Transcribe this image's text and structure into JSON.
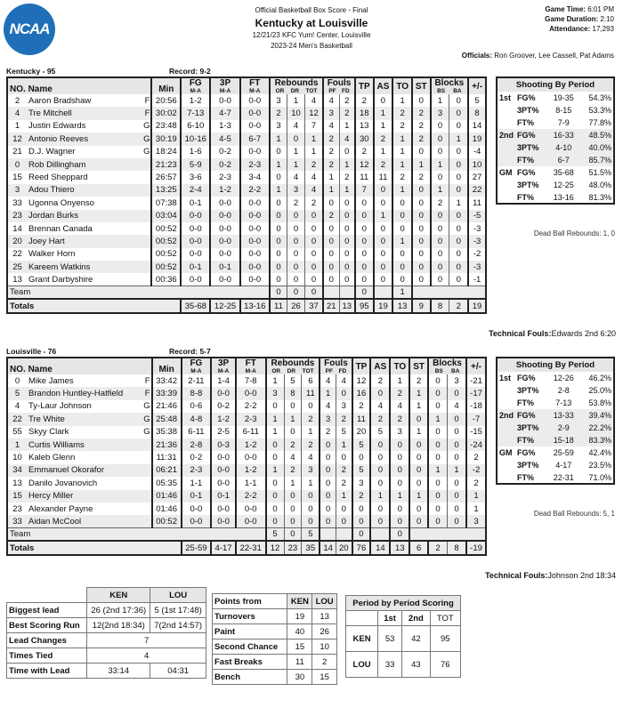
{
  "header": {
    "logo": "NCAA",
    "subtitle": "Official Basketball Box Score - Final",
    "title": "Kentucky at Louisville",
    "venue": "12/21/23 KFC Yum! Center, Louisville",
    "season": "2023-24 Men's Basketball"
  },
  "game_info": {
    "time_label": "Game Time:",
    "time": "6:01 PM",
    "duration_label": "Game Duration:",
    "duration": "2:10",
    "attendance_label": "Attendance:",
    "attendance": "17,293",
    "officials_label": "Officials:",
    "officials": "Ron Groover, Lee Cassell, Pat Adams"
  },
  "columns": {
    "no": "NO.",
    "name": "Name",
    "min": "Min",
    "fg": "FG",
    "p3": "3P",
    "ft": "FT",
    "ma": "M-A",
    "reb": "Rebounds",
    "or": "OR",
    "dr": "DR",
    "tot": "TOT",
    "fouls": "Fouls",
    "pf": "PF",
    "fd": "FD",
    "tp": "TP",
    "as": "AS",
    "to": "TO",
    "st": "ST",
    "blocks": "Blocks",
    "bs": "BS",
    "ba": "BA",
    "pm": "+/-",
    "team": "Team",
    "totals": "Totals"
  },
  "teams": [
    {
      "label": "Kentucky - 95",
      "record": "Record: 9-2",
      "players": [
        [
          "2",
          "Aaron Bradshaw",
          "F",
          "20:56",
          "1-2",
          "0-0",
          "0-0",
          "3",
          "1",
          "4",
          "4",
          "2",
          "2",
          "0",
          "1",
          "0",
          "1",
          "0",
          "5"
        ],
        [
          "4",
          "Tre Mitchell",
          "F",
          "30:02",
          "7-13",
          "4-7",
          "0-0",
          "2",
          "10",
          "12",
          "3",
          "2",
          "18",
          "1",
          "2",
          "2",
          "3",
          "0",
          "8"
        ],
        [
          "1",
          "Justin Edwards",
          "G",
          "23:48",
          "6-10",
          "1-3",
          "0-0",
          "3",
          "4",
          "7",
          "4",
          "1",
          "13",
          "1",
          "2",
          "2",
          "0",
          "0",
          "14"
        ],
        [
          "12",
          "Antonio Reeves",
          "G",
          "30:19",
          "10-16",
          "4-5",
          "6-7",
          "1",
          "0",
          "1",
          "2",
          "4",
          "30",
          "2",
          "1",
          "2",
          "0",
          "1",
          "19"
        ],
        [
          "21",
          "D.J. Wagner",
          "G",
          "18:24",
          "1-6",
          "0-2",
          "0-0",
          "0",
          "1",
          "1",
          "2",
          "0",
          "2",
          "1",
          "1",
          "0",
          "0",
          "0",
          "-4"
        ],
        [
          "0",
          "Rob Dillingham",
          "",
          "21:23",
          "5-9",
          "0-2",
          "2-3",
          "1",
          "1",
          "2",
          "2",
          "1",
          "12",
          "2",
          "1",
          "1",
          "1",
          "0",
          "10"
        ],
        [
          "15",
          "Reed Sheppard",
          "",
          "26:57",
          "3-6",
          "2-3",
          "3-4",
          "0",
          "4",
          "4",
          "1",
          "2",
          "11",
          "11",
          "2",
          "2",
          "0",
          "0",
          "27"
        ],
        [
          "3",
          "Adou Thiero",
          "",
          "13:25",
          "2-4",
          "1-2",
          "2-2",
          "1",
          "3",
          "4",
          "1",
          "1",
          "7",
          "0",
          "1",
          "0",
          "1",
          "0",
          "22"
        ],
        [
          "33",
          "Ugonna Onyenso",
          "",
          "07:38",
          "0-1",
          "0-0",
          "0-0",
          "0",
          "2",
          "2",
          "0",
          "0",
          "0",
          "0",
          "0",
          "0",
          "2",
          "1",
          "11"
        ],
        [
          "23",
          "Jordan Burks",
          "",
          "03:04",
          "0-0",
          "0-0",
          "0-0",
          "0",
          "0",
          "0",
          "2",
          "0",
          "0",
          "1",
          "0",
          "0",
          "0",
          "0",
          "-5"
        ],
        [
          "14",
          "Brennan Canada",
          "",
          "00:52",
          "0-0",
          "0-0",
          "0-0",
          "0",
          "0",
          "0",
          "0",
          "0",
          "0",
          "0",
          "0",
          "0",
          "0",
          "0",
          "-3"
        ],
        [
          "20",
          "Joey Hart",
          "",
          "00:52",
          "0-0",
          "0-0",
          "0-0",
          "0",
          "0",
          "0",
          "0",
          "0",
          "0",
          "0",
          "1",
          "0",
          "0",
          "0",
          "-3"
        ],
        [
          "22",
          "Walker Horn",
          "",
          "00:52",
          "0-0",
          "0-0",
          "0-0",
          "0",
          "0",
          "0",
          "0",
          "0",
          "0",
          "0",
          "0",
          "0",
          "0",
          "0",
          "-2"
        ],
        [
          "25",
          "Kareem Watkins",
          "",
          "00:52",
          "0-1",
          "0-1",
          "0-0",
          "0",
          "0",
          "0",
          "0",
          "0",
          "0",
          "0",
          "0",
          "0",
          "0",
          "0",
          "-3"
        ],
        [
          "13",
          "Grant Darbyshire",
          "",
          "00:36",
          "0-0",
          "0-0",
          "0-0",
          "0",
          "0",
          "0",
          "0",
          "0",
          "0",
          "0",
          "0",
          "0",
          "0",
          "0",
          "-1"
        ]
      ],
      "team_row": {
        "or": "0",
        "dr": "0",
        "tot": "0",
        "tp": "0",
        "to": "1"
      },
      "totals": [
        "35-68",
        "12-25",
        "13-16",
        "11",
        "26",
        "37",
        "21",
        "13",
        "95",
        "19",
        "13",
        "9",
        "8",
        "2",
        "19"
      ],
      "technical": {
        "label": "Technical Fouls:",
        "value": "Edwards 2nd 6:20"
      },
      "shooting": {
        "title": "Shooting By Period",
        "periods": [
          {
            "label": "1st",
            "rows": [
              [
                "FG%",
                "19-35",
                "54.3%"
              ],
              [
                "3PT%",
                "8-15",
                "53.3%"
              ],
              [
                "FT%",
                "7-9",
                "77.8%"
              ]
            ]
          },
          {
            "label": "2nd",
            "rows": [
              [
                "FG%",
                "16-33",
                "48.5%"
              ],
              [
                "3PT%",
                "4-10",
                "40.0%"
              ],
              [
                "FT%",
                "6-7",
                "85.7%"
              ]
            ]
          },
          {
            "label": "GM",
            "rows": [
              [
                "FG%",
                "35-68",
                "51.5%"
              ],
              [
                "3PT%",
                "12-25",
                "48.0%"
              ],
              [
                "FT%",
                "13-16",
                "81.3%"
              ]
            ]
          }
        ],
        "dead_ball": "Dead Ball Rebounds: 1, 0"
      }
    },
    {
      "label": "Louisville - 76",
      "record": "Record: 5-7",
      "players": [
        [
          "0",
          "Mike James",
          "F",
          "33:42",
          "2-11",
          "1-4",
          "7-8",
          "1",
          "5",
          "6",
          "4",
          "4",
          "12",
          "2",
          "1",
          "2",
          "0",
          "3",
          "-21"
        ],
        [
          "5",
          "Brandon Huntley-Hatfield",
          "F",
          "33:39",
          "8-8",
          "0-0",
          "0-0",
          "3",
          "8",
          "11",
          "1",
          "0",
          "16",
          "0",
          "2",
          "1",
          "0",
          "0",
          "-17"
        ],
        [
          "4",
          "Ty-Laur Johnson",
          "G",
          "21:46",
          "0-6",
          "0-2",
          "2-2",
          "0",
          "0",
          "0",
          "4",
          "3",
          "2",
          "4",
          "4",
          "1",
          "0",
          "4",
          "-18"
        ],
        [
          "22",
          "Tre White",
          "G",
          "25:48",
          "4-8",
          "1-2",
          "2-3",
          "1",
          "1",
          "2",
          "3",
          "2",
          "11",
          "2",
          "2",
          "0",
          "1",
          "0",
          "-7"
        ],
        [
          "55",
          "Skyy Clark",
          "G",
          "35:38",
          "6-11",
          "2-5",
          "6-11",
          "1",
          "0",
          "1",
          "2",
          "5",
          "20",
          "5",
          "3",
          "1",
          "0",
          "0",
          "-15"
        ],
        [
          "1",
          "Curtis Williams",
          "",
          "21:36",
          "2-8",
          "0-3",
          "1-2",
          "0",
          "2",
          "2",
          "0",
          "1",
          "5",
          "0",
          "0",
          "0",
          "0",
          "0",
          "-24"
        ],
        [
          "10",
          "Kaleb Glenn",
          "",
          "11:31",
          "0-2",
          "0-0",
          "0-0",
          "0",
          "4",
          "4",
          "0",
          "0",
          "0",
          "0",
          "0",
          "0",
          "0",
          "0",
          "2"
        ],
        [
          "34",
          "Emmanuel Okorafor",
          "",
          "06:21",
          "2-3",
          "0-0",
          "1-2",
          "1",
          "2",
          "3",
          "0",
          "2",
          "5",
          "0",
          "0",
          "0",
          "1",
          "1",
          "-2"
        ],
        [
          "13",
          "Danilo Jovanovich",
          "",
          "05:35",
          "1-1",
          "0-0",
          "1-1",
          "0",
          "1",
          "1",
          "0",
          "2",
          "3",
          "0",
          "0",
          "0",
          "0",
          "0",
          "2"
        ],
        [
          "15",
          "Hercy Miller",
          "",
          "01:46",
          "0-1",
          "0-1",
          "2-2",
          "0",
          "0",
          "0",
          "0",
          "1",
          "2",
          "1",
          "1",
          "1",
          "0",
          "0",
          "1"
        ],
        [
          "23",
          "Alexander Payne",
          "",
          "01:46",
          "0-0",
          "0-0",
          "0-0",
          "0",
          "0",
          "0",
          "0",
          "0",
          "0",
          "0",
          "0",
          "0",
          "0",
          "0",
          "1"
        ],
        [
          "33",
          "Aidan McCool",
          "",
          "00:52",
          "0-0",
          "0-0",
          "0-0",
          "0",
          "0",
          "0",
          "0",
          "0",
          "0",
          "0",
          "0",
          "0",
          "0",
          "0",
          "3"
        ]
      ],
      "team_row": {
        "or": "5",
        "dr": "0",
        "tot": "5",
        "tp": "0",
        "to": "0"
      },
      "totals": [
        "25-59",
        "4-17",
        "22-31",
        "12",
        "23",
        "35",
        "14",
        "20",
        "76",
        "14",
        "13",
        "6",
        "2",
        "8",
        "-19"
      ],
      "technical": {
        "label": "Technical Fouls:",
        "value": "Johnson 2nd 18:34"
      },
      "shooting": {
        "title": "Shooting By Period",
        "periods": [
          {
            "label": "1st",
            "rows": [
              [
                "FG%",
                "12-26",
                "46.2%"
              ],
              [
                "3PT%",
                "2-8",
                "25.0%"
              ],
              [
                "FT%",
                "7-13",
                "53.8%"
              ]
            ]
          },
          {
            "label": "2nd",
            "rows": [
              [
                "FG%",
                "13-33",
                "39.4%"
              ],
              [
                "3PT%",
                "2-9",
                "22.2%"
              ],
              [
                "FT%",
                "15-18",
                "83.3%"
              ]
            ]
          },
          {
            "label": "GM",
            "rows": [
              [
                "FG%",
                "25-59",
                "42.4%"
              ],
              [
                "3PT%",
                "4-17",
                "23.5%"
              ],
              [
                "FT%",
                "22-31",
                "71.0%"
              ]
            ]
          }
        ],
        "dead_ball": "Dead Ball Rebounds: 5, 1"
      }
    }
  ],
  "game_stats": {
    "headers": [
      "KEN",
      "LOU"
    ],
    "rows": [
      {
        "label": "Biggest lead",
        "ken": "26 (2nd 17:36)",
        "lou": "5 (1st 17:48)"
      },
      {
        "label": "Best Scoring Run",
        "ken": "12(2nd 18:34)",
        "lou": "7(2nd 14:57)"
      },
      {
        "label": "Lead Changes",
        "both": "7"
      },
      {
        "label": "Times Tied",
        "both": "4"
      },
      {
        "label": "Time with Lead",
        "ken": "33:14",
        "lou": "04:31"
      }
    ]
  },
  "points_from": {
    "header": "Points from",
    "teams": [
      "KEN",
      "LOU"
    ],
    "rows": [
      [
        "Turnovers",
        "19",
        "13"
      ],
      [
        "Paint",
        "40",
        "26"
      ],
      [
        "Second Chance",
        "15",
        "10"
      ],
      [
        "Fast Breaks",
        "11",
        "2"
      ],
      [
        "Bench",
        "30",
        "15"
      ]
    ]
  },
  "period_scoring": {
    "title": "Period by Period Scoring",
    "headers": [
      "1st",
      "2nd",
      "TOT"
    ],
    "rows": [
      [
        "KEN",
        "53",
        "42",
        "95"
      ],
      [
        "LOU",
        "33",
        "43",
        "76"
      ]
    ]
  }
}
